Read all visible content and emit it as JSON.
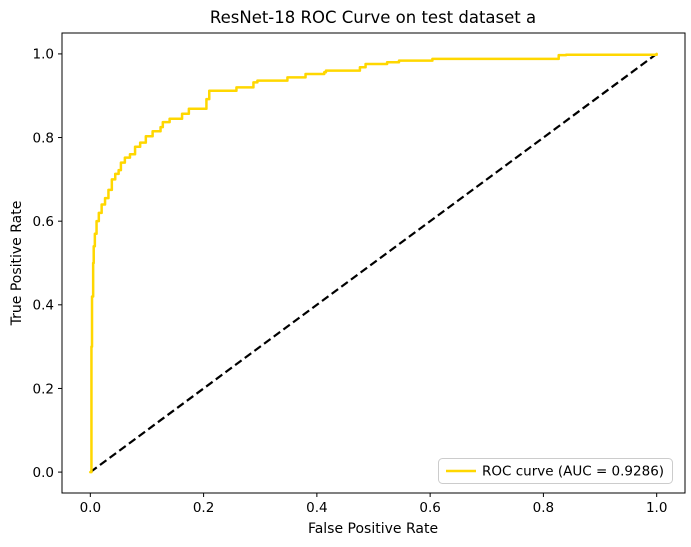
{
  "figure": {
    "background": "#ffffff",
    "spine_color": "#000000"
  },
  "chart_data": {
    "type": "line",
    "title": "ResNet-18 ROC Curve on test dataset a",
    "xlabel": "False Positive Rate",
    "ylabel": "True Positive Rate",
    "xlim": [
      -0.05,
      1.05
    ],
    "ylim": [
      -0.05,
      1.05
    ],
    "x_ticks": [
      0.0,
      0.2,
      0.4,
      0.6,
      0.8,
      1.0
    ],
    "y_ticks": [
      0.0,
      0.2,
      0.4,
      0.6,
      0.8,
      1.0
    ],
    "grid": false,
    "legend_position": "lower right",
    "series": [
      {
        "name": "ROC curve (AUC = 0.9286)",
        "auc": 0.9286,
        "color": "#FFD700",
        "style": "solid",
        "interpolation": "step-after",
        "x": [
          0,
          0.002,
          0.003,
          0.005,
          0.006,
          0.008,
          0.011,
          0.015,
          0.02,
          0.026,
          0.032,
          0.038,
          0.044,
          0.05,
          0.054,
          0.061,
          0.07,
          0.079,
          0.088,
          0.098,
          0.11,
          0.124,
          0.128,
          0.14,
          0.162,
          0.174,
          0.205,
          0.21,
          0.258,
          0.288,
          0.295,
          0.348,
          0.38,
          0.413,
          0.416,
          0.476,
          0.486,
          0.524,
          0.545,
          0.604,
          0.8,
          0.827,
          0.84,
          1.0
        ],
        "y": [
          0,
          0.3,
          0.42,
          0.5,
          0.54,
          0.57,
          0.6,
          0.62,
          0.64,
          0.655,
          0.675,
          0.7,
          0.713,
          0.722,
          0.74,
          0.752,
          0.76,
          0.778,
          0.788,
          0.803,
          0.815,
          0.825,
          0.837,
          0.845,
          0.857,
          0.869,
          0.892,
          0.912,
          0.92,
          0.932,
          0.936,
          0.944,
          0.952,
          0.956,
          0.96,
          0.968,
          0.976,
          0.98,
          0.984,
          0.988,
          0.988,
          0.997,
          0.998,
          1.0
        ]
      },
      {
        "name": "chance-diagonal",
        "color": "#000000",
        "style": "dashed",
        "interpolation": "linear",
        "x": [
          0,
          1
        ],
        "y": [
          0,
          1
        ]
      }
    ]
  }
}
